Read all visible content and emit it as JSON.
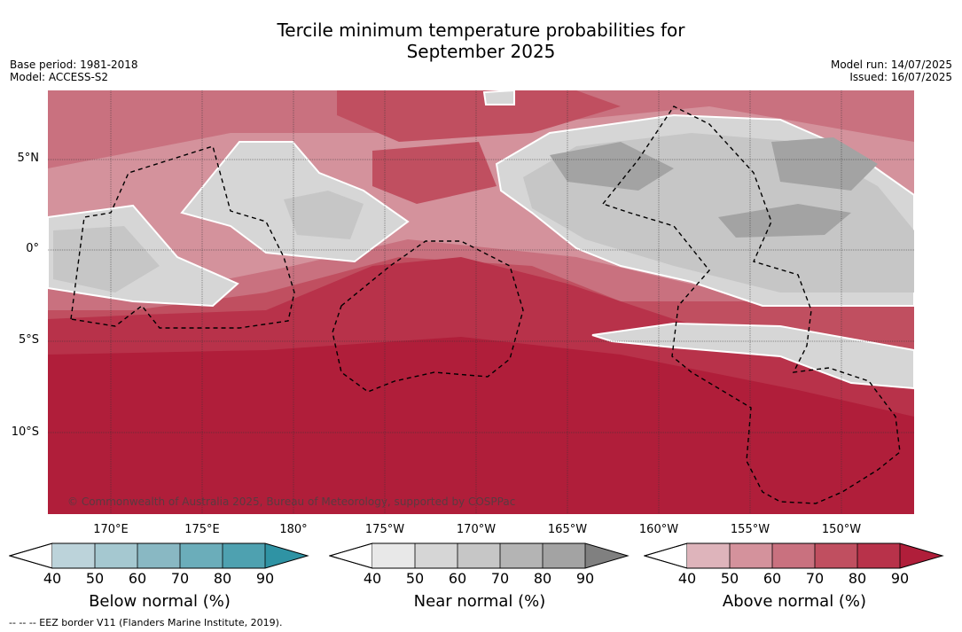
{
  "title_line1": "Tercile minimum temperature probabilities for",
  "title_line2": "September 2025",
  "base_period": "Base period: 1981-2018",
  "model": "Model: ACCESS-S2",
  "model_run": "Model run: 14/07/2025",
  "issued": "Issued: 16/07/2025",
  "y_labels": [
    "5°N",
    "0°",
    "5°S",
    "10°S"
  ],
  "x_labels": [
    "170°E",
    "175°E",
    "180°",
    "175°W",
    "170°W",
    "165°W",
    "160°W",
    "155°W",
    "150°W"
  ],
  "copyright": "© Commonwealth of Australia 2025, Bureau of Meteorology, supported by COSPPac",
  "colorbars": [
    {
      "title": "Below normal (%)",
      "ticks": [
        "40",
        "50",
        "60",
        "70",
        "80",
        "90"
      ],
      "colors": [
        "#bcd3da",
        "#a5c8d0",
        "#89b8c3",
        "#6badba",
        "#4ea1b0",
        "#2f93a4"
      ]
    },
    {
      "title": "Near normal (%)",
      "ticks": [
        "40",
        "50",
        "60",
        "70",
        "80",
        "90"
      ],
      "colors": [
        "#e8e8e8",
        "#d6d6d6",
        "#c6c6c6",
        "#b4b4b4",
        "#a3a3a3",
        "#808080"
      ]
    },
    {
      "title": "Above normal (%)",
      "ticks": [
        "40",
        "50",
        "60",
        "70",
        "80",
        "90"
      ],
      "colors": [
        "#deb4bb",
        "#d4929c",
        "#c9717f",
        "#c04f60",
        "#b8324a",
        "#b01e3a"
      ]
    }
  ],
  "footer": "--  --  -- EEZ border V11 (Flanders Marine Institute, 2019)."
}
